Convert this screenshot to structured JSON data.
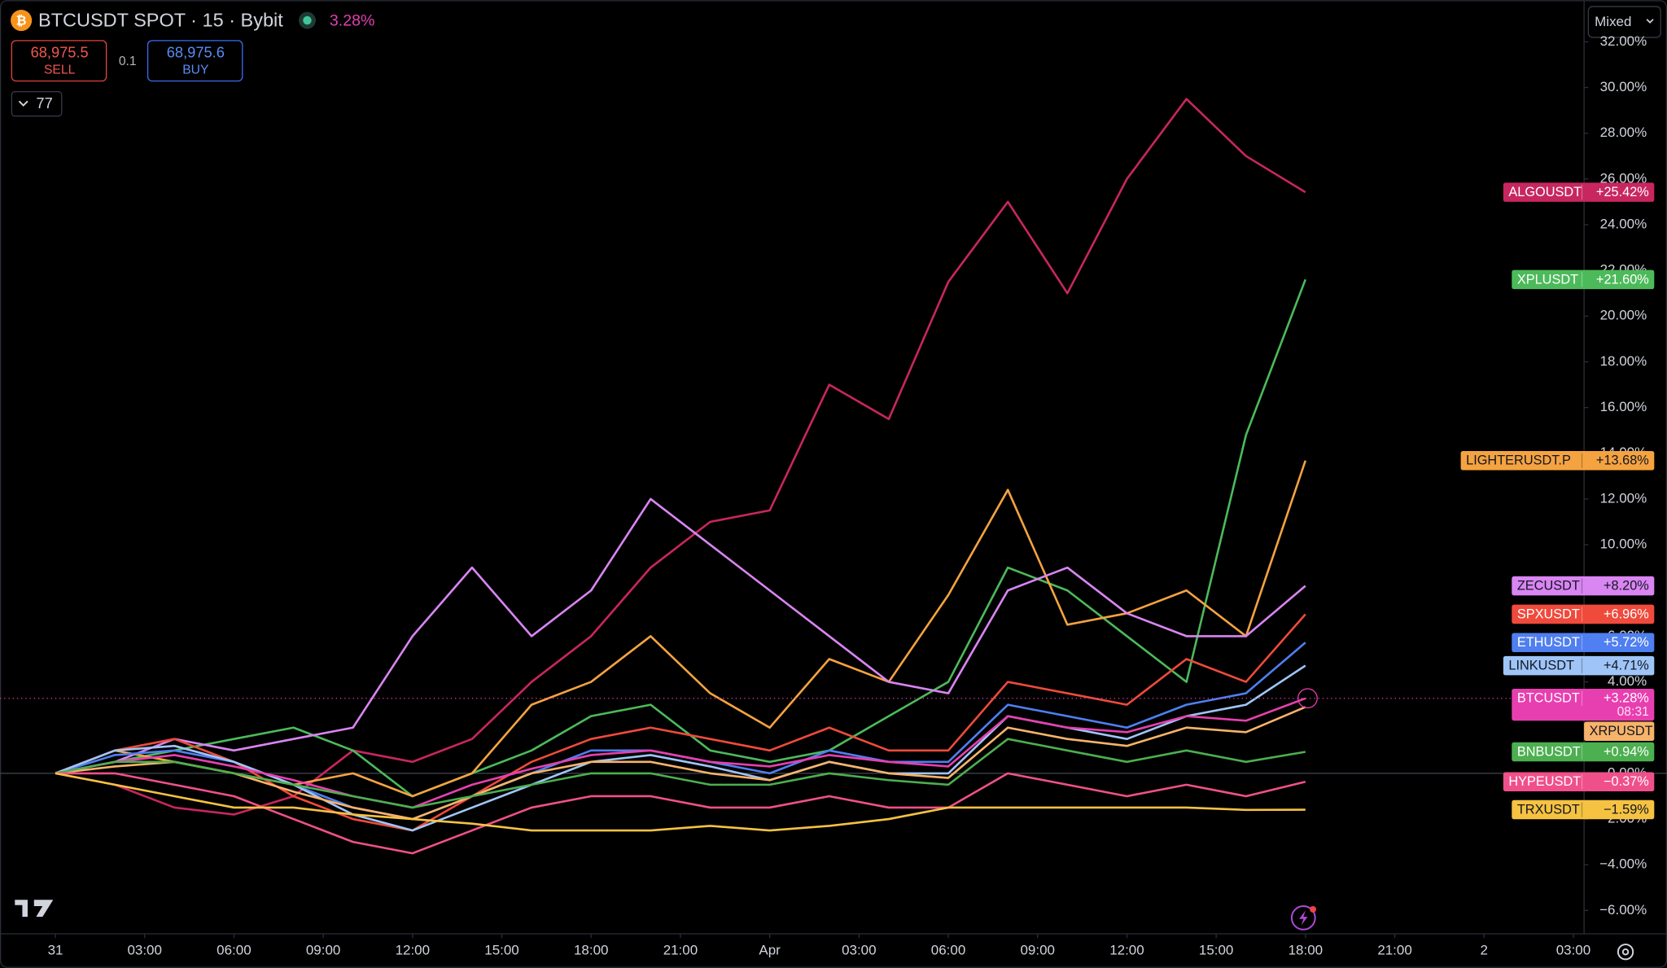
{
  "header": {
    "symbol": "BTCUSDT SPOT · 15 · Bybit",
    "change": "3.28%",
    "sell_price": "68,975.5",
    "sell": "SELL",
    "quantity": "0.1",
    "buy_price": "68,975.6",
    "buy": "BUY",
    "series_count": "77",
    "scale_mode": "Mixed"
  },
  "chart_data": {
    "type": "line",
    "x": [
      0,
      2,
      4,
      6,
      8,
      10,
      12,
      14,
      16,
      18,
      20,
      22,
      24,
      26,
      28,
      30,
      32,
      34,
      36,
      38,
      40,
      42
    ],
    "xlim": [
      -1.86,
      51.36
    ],
    "xticks": [
      {
        "value": 0,
        "label": "31"
      },
      {
        "value": 3,
        "label": "03:00"
      },
      {
        "value": 6,
        "label": "06:00"
      },
      {
        "value": 9,
        "label": "09:00"
      },
      {
        "value": 12,
        "label": "12:00"
      },
      {
        "value": 15,
        "label": "15:00"
      },
      {
        "value": 18,
        "label": "18:00"
      },
      {
        "value": 21,
        "label": "21:00"
      },
      {
        "value": 24,
        "label": "Apr"
      },
      {
        "value": 27,
        "label": "03:00"
      },
      {
        "value": 30,
        "label": "06:00"
      },
      {
        "value": 33,
        "label": "09:00"
      },
      {
        "value": 36,
        "label": "12:00"
      },
      {
        "value": 39,
        "label": "15:00"
      },
      {
        "value": 42,
        "label": "18:00"
      },
      {
        "value": 45,
        "label": "21:00"
      },
      {
        "value": 48,
        "label": "2"
      },
      {
        "value": 51,
        "label": "03:00"
      }
    ],
    "ylim": [
      -7.02,
      33.82
    ],
    "yticks": [
      {
        "value": 32,
        "label": "32.00%"
      },
      {
        "value": 30,
        "label": "30.00%"
      },
      {
        "value": 28,
        "label": "28.00%"
      },
      {
        "value": 26,
        "label": "26.00%"
      },
      {
        "value": 24,
        "label": "24.00%"
      },
      {
        "value": 22,
        "label": "22.00%"
      },
      {
        "value": 20,
        "label": "20.00%"
      },
      {
        "value": 18,
        "label": "18.00%"
      },
      {
        "value": 16,
        "label": "16.00%"
      },
      {
        "value": 14,
        "label": "14.00%"
      },
      {
        "value": 12,
        "label": "12.00%"
      },
      {
        "value": 10,
        "label": "10.00%"
      },
      {
        "value": 8,
        "label": "8.00%"
      },
      {
        "value": 6,
        "label": "6.00%"
      },
      {
        "value": 4,
        "label": "4.00%"
      },
      {
        "value": 2,
        "label": "2.00%"
      },
      {
        "value": 0,
        "label": "0.00%"
      },
      {
        "value": -2,
        "label": "−2.00%"
      },
      {
        "value": -4,
        "label": "−4.00%"
      },
      {
        "value": -6,
        "label": "−6.00%"
      }
    ],
    "series": [
      {
        "name": "ALGOUSDT",
        "color": "#c8265f",
        "values": [
          0,
          -0.5,
          -1.5,
          -1.8,
          -1,
          1,
          0.5,
          1.5,
          4,
          6,
          9,
          11,
          11.5,
          17,
          15.5,
          21.5,
          25,
          21,
          26,
          29.5,
          27,
          25.42
        ],
        "value_label": "+25.42%"
      },
      {
        "name": "XPLUSDT",
        "color": "#4cba5a",
        "values": [
          0,
          0.5,
          1,
          1.5,
          2,
          1,
          -1,
          0,
          1,
          2.5,
          3,
          1,
          0.5,
          1,
          2.5,
          4,
          9,
          8,
          6,
          4,
          14.8,
          21.6
        ],
        "value_label": "+21.60%"
      },
      {
        "name": "LIGHTERUSDT.P",
        "color": "#f5a340",
        "values": [
          0,
          1,
          0.5,
          0,
          -0.5,
          0,
          -1,
          0,
          3,
          4,
          6,
          3.5,
          2,
          5,
          4,
          7.8,
          12.4,
          6.5,
          7,
          8,
          6,
          13.68
        ],
        "value_label": "+13.68%"
      },
      {
        "name": "ZECUSDT",
        "color": "#d985f2",
        "values": [
          0,
          0.5,
          1.5,
          1,
          1.5,
          2,
          6,
          9,
          6,
          8,
          12,
          10,
          8,
          6,
          4,
          3.5,
          8,
          9,
          7,
          6,
          6,
          8.2
        ],
        "value_label": "+8.20%"
      },
      {
        "name": "SPXUSDT",
        "color": "#ef4a3c",
        "values": [
          0,
          1,
          1.5,
          0.5,
          -1,
          -2,
          -2.5,
          -1,
          0.5,
          1.5,
          2,
          1.5,
          1,
          2,
          1,
          1,
          4,
          3.5,
          3,
          5,
          4,
          6.96
        ],
        "value_label": "+6.96%"
      },
      {
        "name": "ETHUSDT",
        "color": "#4f7ff0",
        "values": [
          0,
          0.8,
          1,
          0.5,
          -0.5,
          -1.5,
          -2,
          -1,
          0,
          1,
          1,
          0.5,
          0,
          1,
          0.5,
          0.5,
          3,
          2.5,
          2,
          3,
          3.5,
          5.72
        ],
        "value_label": "+5.72%"
      },
      {
        "name": "LINKUSDT",
        "color": "#9fc5f8",
        "values": [
          0,
          1,
          1.2,
          0.5,
          -0.5,
          -1.8,
          -2.5,
          -1.5,
          -0.5,
          0.5,
          0.8,
          0.3,
          -0.3,
          0.5,
          0,
          0,
          2.5,
          2,
          1.5,
          2.5,
          3,
          4.71
        ],
        "value_label": "+4.71%"
      },
      {
        "name": "BTCUSDT",
        "color": "#e83fb0",
        "values": [
          0,
          0.5,
          0.8,
          0.3,
          -0.3,
          -1,
          -1.5,
          -0.5,
          0.2,
          0.8,
          1,
          0.5,
          0.3,
          0.8,
          0.5,
          0.3,
          2.5,
          2,
          1.8,
          2.5,
          2.3,
          3.28
        ],
        "value_label": "+3.28%",
        "countdown": "08:31"
      },
      {
        "name": "XRPUSDT",
        "color": "#f7b36a",
        "values": [
          0,
          0.3,
          0.5,
          0,
          -0.8,
          -1.5,
          -2,
          -1,
          0,
          0.5,
          0.5,
          0,
          -0.3,
          0.5,
          0,
          -0.2,
          2,
          1.5,
          1.2,
          2,
          1.8,
          2.9
        ]
      },
      {
        "name": "BNBUSDT",
        "color": "#4caf50",
        "values": [
          0,
          0.5,
          0.5,
          0,
          -0.5,
          -1,
          -1.5,
          -1,
          -0.5,
          0,
          0,
          -0.5,
          -0.5,
          0,
          -0.3,
          -0.5,
          1.5,
          1,
          0.5,
          1,
          0.5,
          0.94
        ],
        "value_label": "+0.94%"
      },
      {
        "name": "HYPEUSDT",
        "color": "#f0508a",
        "values": [
          0,
          0,
          -0.5,
          -1,
          -2,
          -3,
          -3.5,
          -2.5,
          -1.5,
          -1,
          -1,
          -1.5,
          -1.5,
          -1,
          -1.5,
          -1.5,
          0,
          -0.5,
          -1,
          -0.5,
          -1,
          -0.37
        ],
        "value_label": "−0.37%"
      },
      {
        "name": "TRXUSDT",
        "color": "#f5c242",
        "values": [
          0,
          -0.5,
          -1,
          -1.5,
          -1.5,
          -1.8,
          -2,
          -2.2,
          -2.5,
          -2.5,
          -2.5,
          -2.3,
          -2.5,
          -2.3,
          -2,
          -1.5,
          -1.5,
          -1.5,
          -1.5,
          -1.5,
          -1.6,
          -1.59
        ],
        "value_label": "−1.59%"
      }
    ]
  }
}
